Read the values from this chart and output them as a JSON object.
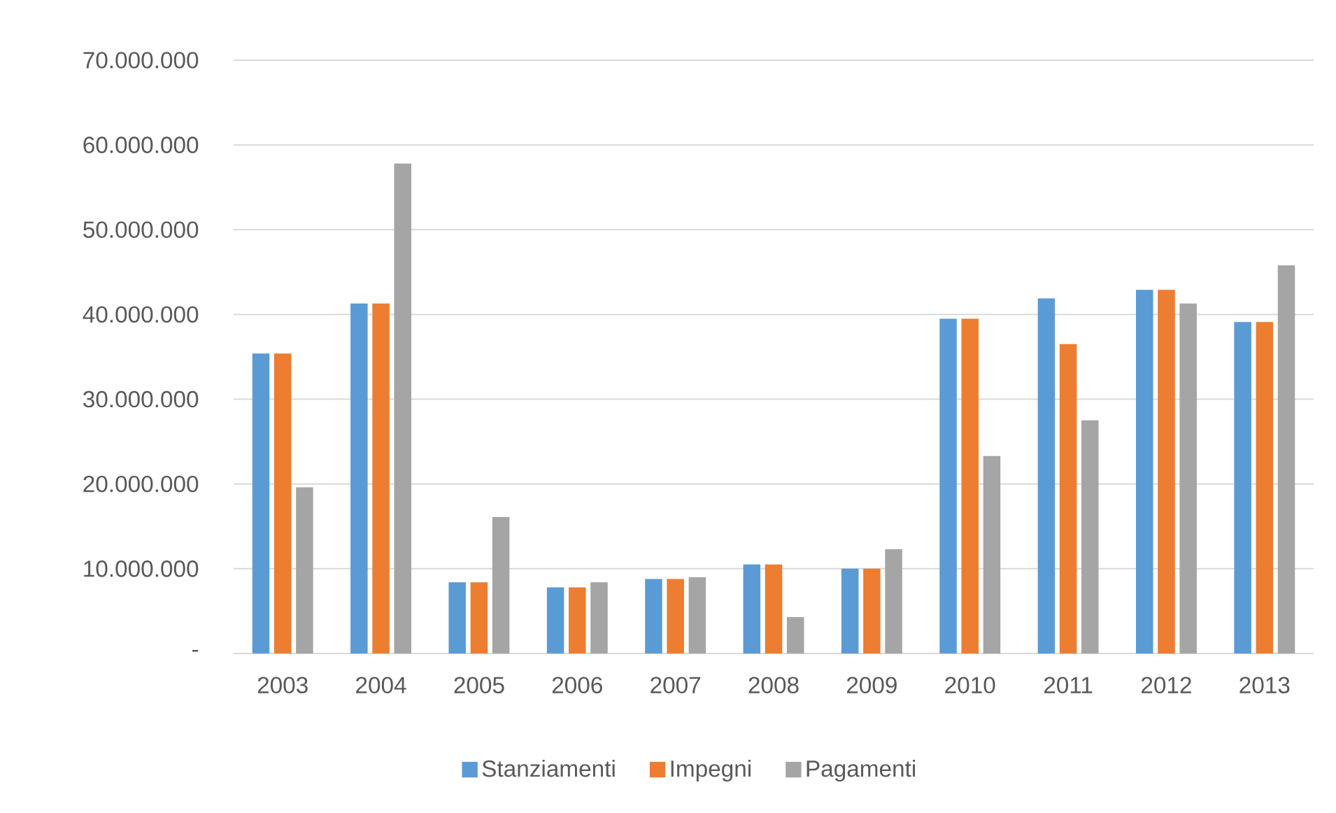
{
  "chart_data": {
    "type": "bar",
    "categories": [
      "2003",
      "2004",
      "2005",
      "2006",
      "2007",
      "2008",
      "2009",
      "2010",
      "2011",
      "2012",
      "2013"
    ],
    "series": [
      {
        "name": "Stanziamenti",
        "color": "#5b9bd5",
        "values": [
          35400000,
          41300000,
          8400000,
          7800000,
          8800000,
          10500000,
          10000000,
          39500000,
          41900000,
          42900000,
          39100000
        ]
      },
      {
        "name": "Impegni",
        "color": "#ed7d31",
        "values": [
          35400000,
          41300000,
          8400000,
          7800000,
          8800000,
          10500000,
          10000000,
          39500000,
          36500000,
          42900000,
          39100000
        ]
      },
      {
        "name": "Pagamenti",
        "color": "#a5a5a5",
        "values": [
          19600000,
          57800000,
          16100000,
          8400000,
          9000000,
          4300000,
          12300000,
          23300000,
          27500000,
          41300000,
          45800000
        ]
      }
    ],
    "ylim": [
      0,
      70000000
    ],
    "yticks": [
      {
        "value": 0,
        "label": "-"
      },
      {
        "value": 10000000,
        "label": "10.000.000"
      },
      {
        "value": 20000000,
        "label": "20.000.000"
      },
      {
        "value": 30000000,
        "label": "30.000.000"
      },
      {
        "value": 40000000,
        "label": "40.000.000"
      },
      {
        "value": 50000000,
        "label": "50.000.000"
      },
      {
        "value": 60000000,
        "label": "60.000.000"
      },
      {
        "value": 70000000,
        "label": "70.000.000"
      }
    ],
    "grid": "y",
    "legend": "bottom"
  }
}
